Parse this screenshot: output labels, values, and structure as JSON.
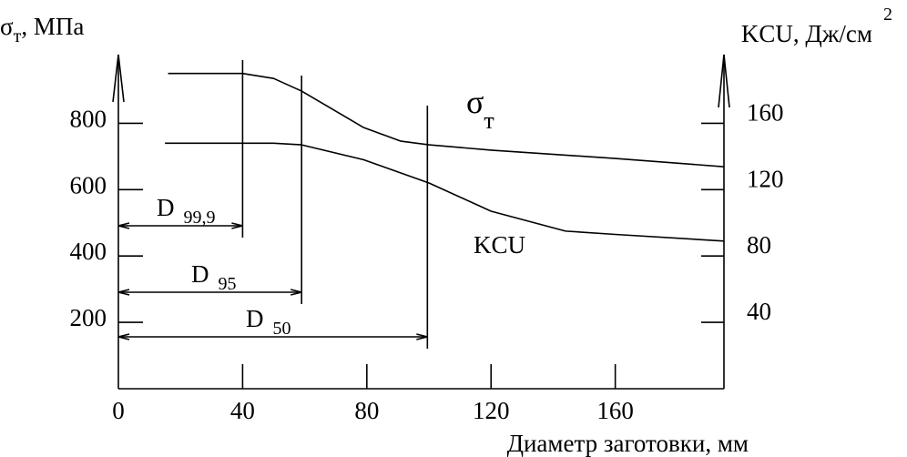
{
  "chart_data": {
    "type": "line",
    "xlabel": "Диаметр заготовки, мм",
    "ylabel": {
      "symbol": "σ",
      "sub": "т",
      "unit": ", МПа"
    },
    "y2label": {
      "text": "KCU, Дж/см",
      "sup": "2"
    },
    "xlim": [
      0,
      195
    ],
    "xticks": [
      0,
      40,
      80,
      120,
      160
    ],
    "ylim": [
      0,
      1000
    ],
    "yticks": [
      200,
      400,
      600,
      800
    ],
    "y2lim": [
      0,
      200
    ],
    "y2ticks": [
      40,
      80,
      120,
      160
    ],
    "series": [
      {
        "name": "σ",
        "name_sub": "т",
        "color": "#000000",
        "axis": "y",
        "x": [
          16,
          40,
          50,
          59,
          79,
          91,
          100,
          120,
          160,
          195
        ],
        "values": [
          950,
          950,
          935,
          897,
          787,
          746,
          735,
          719,
          694,
          669
        ]
      },
      {
        "name": "KCU",
        "color": "#000000",
        "axis": "y2",
        "x": [
          15,
          50,
          59,
          79,
          100,
          120,
          144,
          160,
          195
        ],
        "values": [
          148,
          148,
          147,
          138,
          124,
          107,
          95,
          93,
          89
        ]
      }
    ],
    "markers": [
      {
        "label": "D",
        "sub": "99,9",
        "x": 40
      },
      {
        "label": "D",
        "sub": "95",
        "x": 59
      },
      {
        "label": "D",
        "sub": "50",
        "x": 99.5
      }
    ]
  }
}
